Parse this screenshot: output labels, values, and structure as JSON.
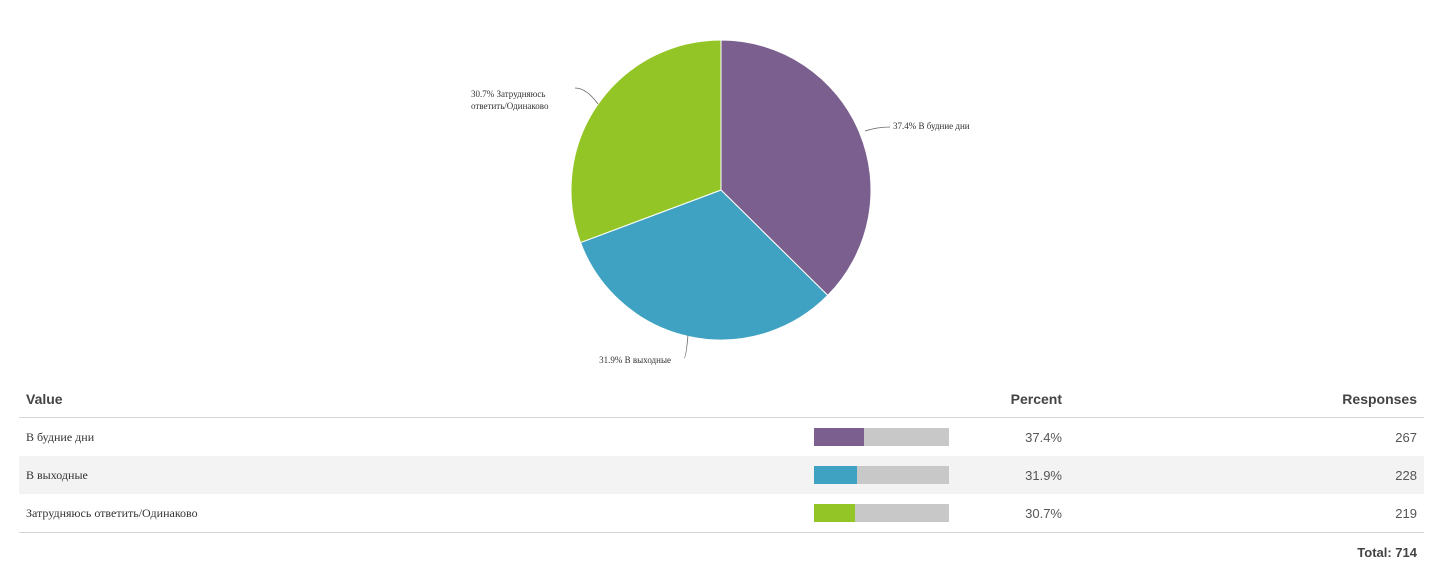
{
  "chart_data": {
    "type": "pie",
    "slices": [
      {
        "label": "В будние дни",
        "percent": 37.4,
        "responses": 267,
        "color": "#7b5f8e"
      },
      {
        "label": "В выходные",
        "percent": 31.9,
        "responses": 228,
        "color": "#40a2c2"
      },
      {
        "label": "Затрудняюсь ответить/Одинаково",
        "percent": 30.7,
        "responses": 219,
        "color": "#94c527"
      }
    ],
    "callouts": [
      {
        "lines": [
          "37.4% В будние дни"
        ]
      },
      {
        "lines": [
          "31.9% В выходные"
        ]
      },
      {
        "lines": [
          "30.7% Затрудняюсь",
          "ответить/Одинаково"
        ]
      }
    ]
  },
  "table": {
    "headers": {
      "value": "Value",
      "percent": "Percent",
      "responses": "Responses"
    },
    "rows": [
      {
        "value": "В будние дни",
        "percent": "37.4%",
        "responses": "267"
      },
      {
        "value": "В выходные",
        "percent": "31.9%",
        "responses": "228"
      },
      {
        "value": "Затрудняюсь ответить/Одинаково",
        "percent": "30.7%",
        "responses": "219"
      }
    ],
    "total": "Total: 714"
  }
}
